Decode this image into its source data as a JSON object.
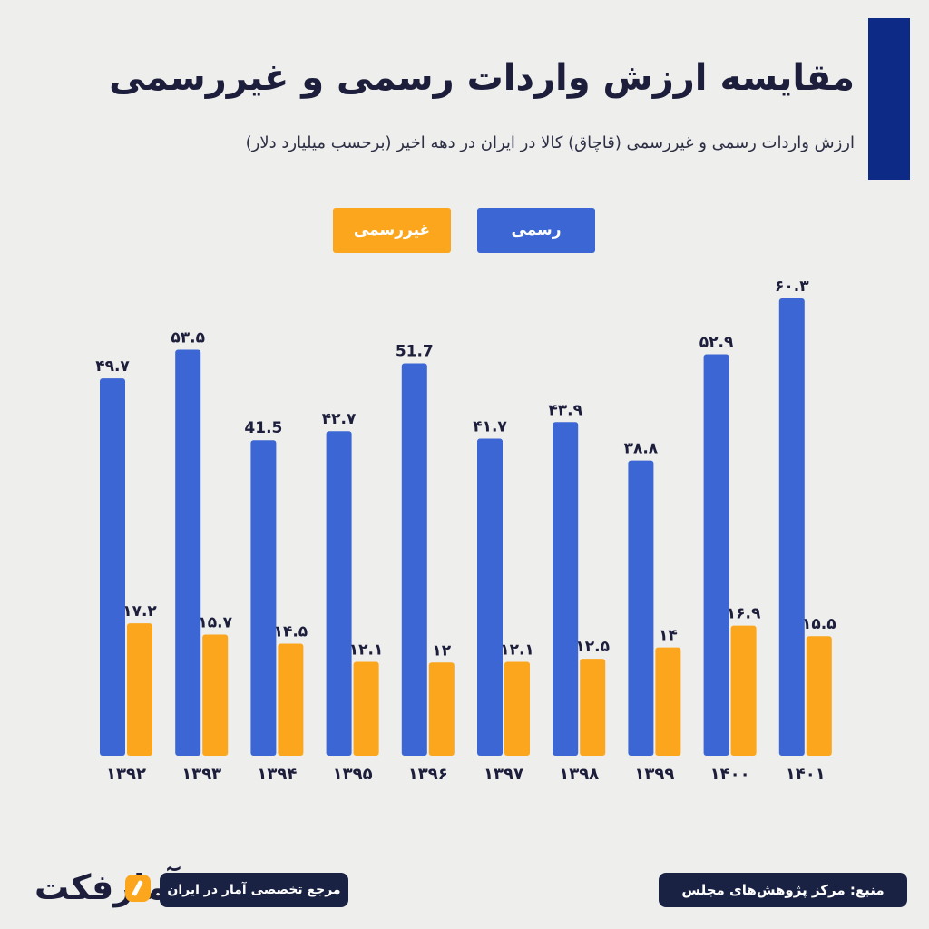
{
  "title": "مقایسه ارزش واردات رسمی و غیررسمی",
  "subtitle": "ارزش واردات رسمی و غیررسمی (قاچاق) کالا در ایران در دهه اخیر (برحسب میلیارد دلار)",
  "source": "منبع: مرکز پژوهش‌های مجلس",
  "tagline": "مرجع تخصصی آمار در ایران",
  "logo_text": "آمارفکت",
  "colors": {
    "formal": "#3b66d4",
    "informal": "#fba61c",
    "accent": "#0c2a86",
    "dark": "#1a2244"
  },
  "chart_data": {
    "type": "bar",
    "categories": [
      "۱۳۹۲",
      "۱۳۹۳",
      "۱۳۹۴",
      "۱۳۹۵",
      "۱۳۹۶",
      "۱۳۹۷",
      "۱۳۹۸",
      "۱۳۹۹",
      "۱۴۰۰",
      "۱۴۰۱"
    ],
    "series": [
      {
        "name": "رسمی",
        "values": [
          49.7,
          53.5,
          41.5,
          42.7,
          51.7,
          41.7,
          43.9,
          38.8,
          52.9,
          60.3
        ],
        "labels": [
          "۴۹.۷",
          "۵۳.۵",
          "41.5",
          "۴۲.۷",
          "51.7",
          "۴۱.۷",
          "۴۳.۹",
          "۳۸.۸",
          "۵۲.۹",
          "۶۰.۳"
        ]
      },
      {
        "name": "غیررسمی",
        "values": [
          17.2,
          15.7,
          14.5,
          12.1,
          12,
          12.1,
          12.5,
          14,
          16.9,
          15.5
        ],
        "labels": [
          "۱۷.۲",
          "۱۵.۷",
          "۱۴.۵",
          "۱۲.۱",
          "۱۲",
          "۱۲.۱",
          "۱۲.۵",
          "۱۴",
          "۱۶.۹",
          "۱۵.۵"
        ]
      }
    ],
    "ylim": [
      0,
      60.3
    ],
    "legend": "top",
    "grid": false
  }
}
